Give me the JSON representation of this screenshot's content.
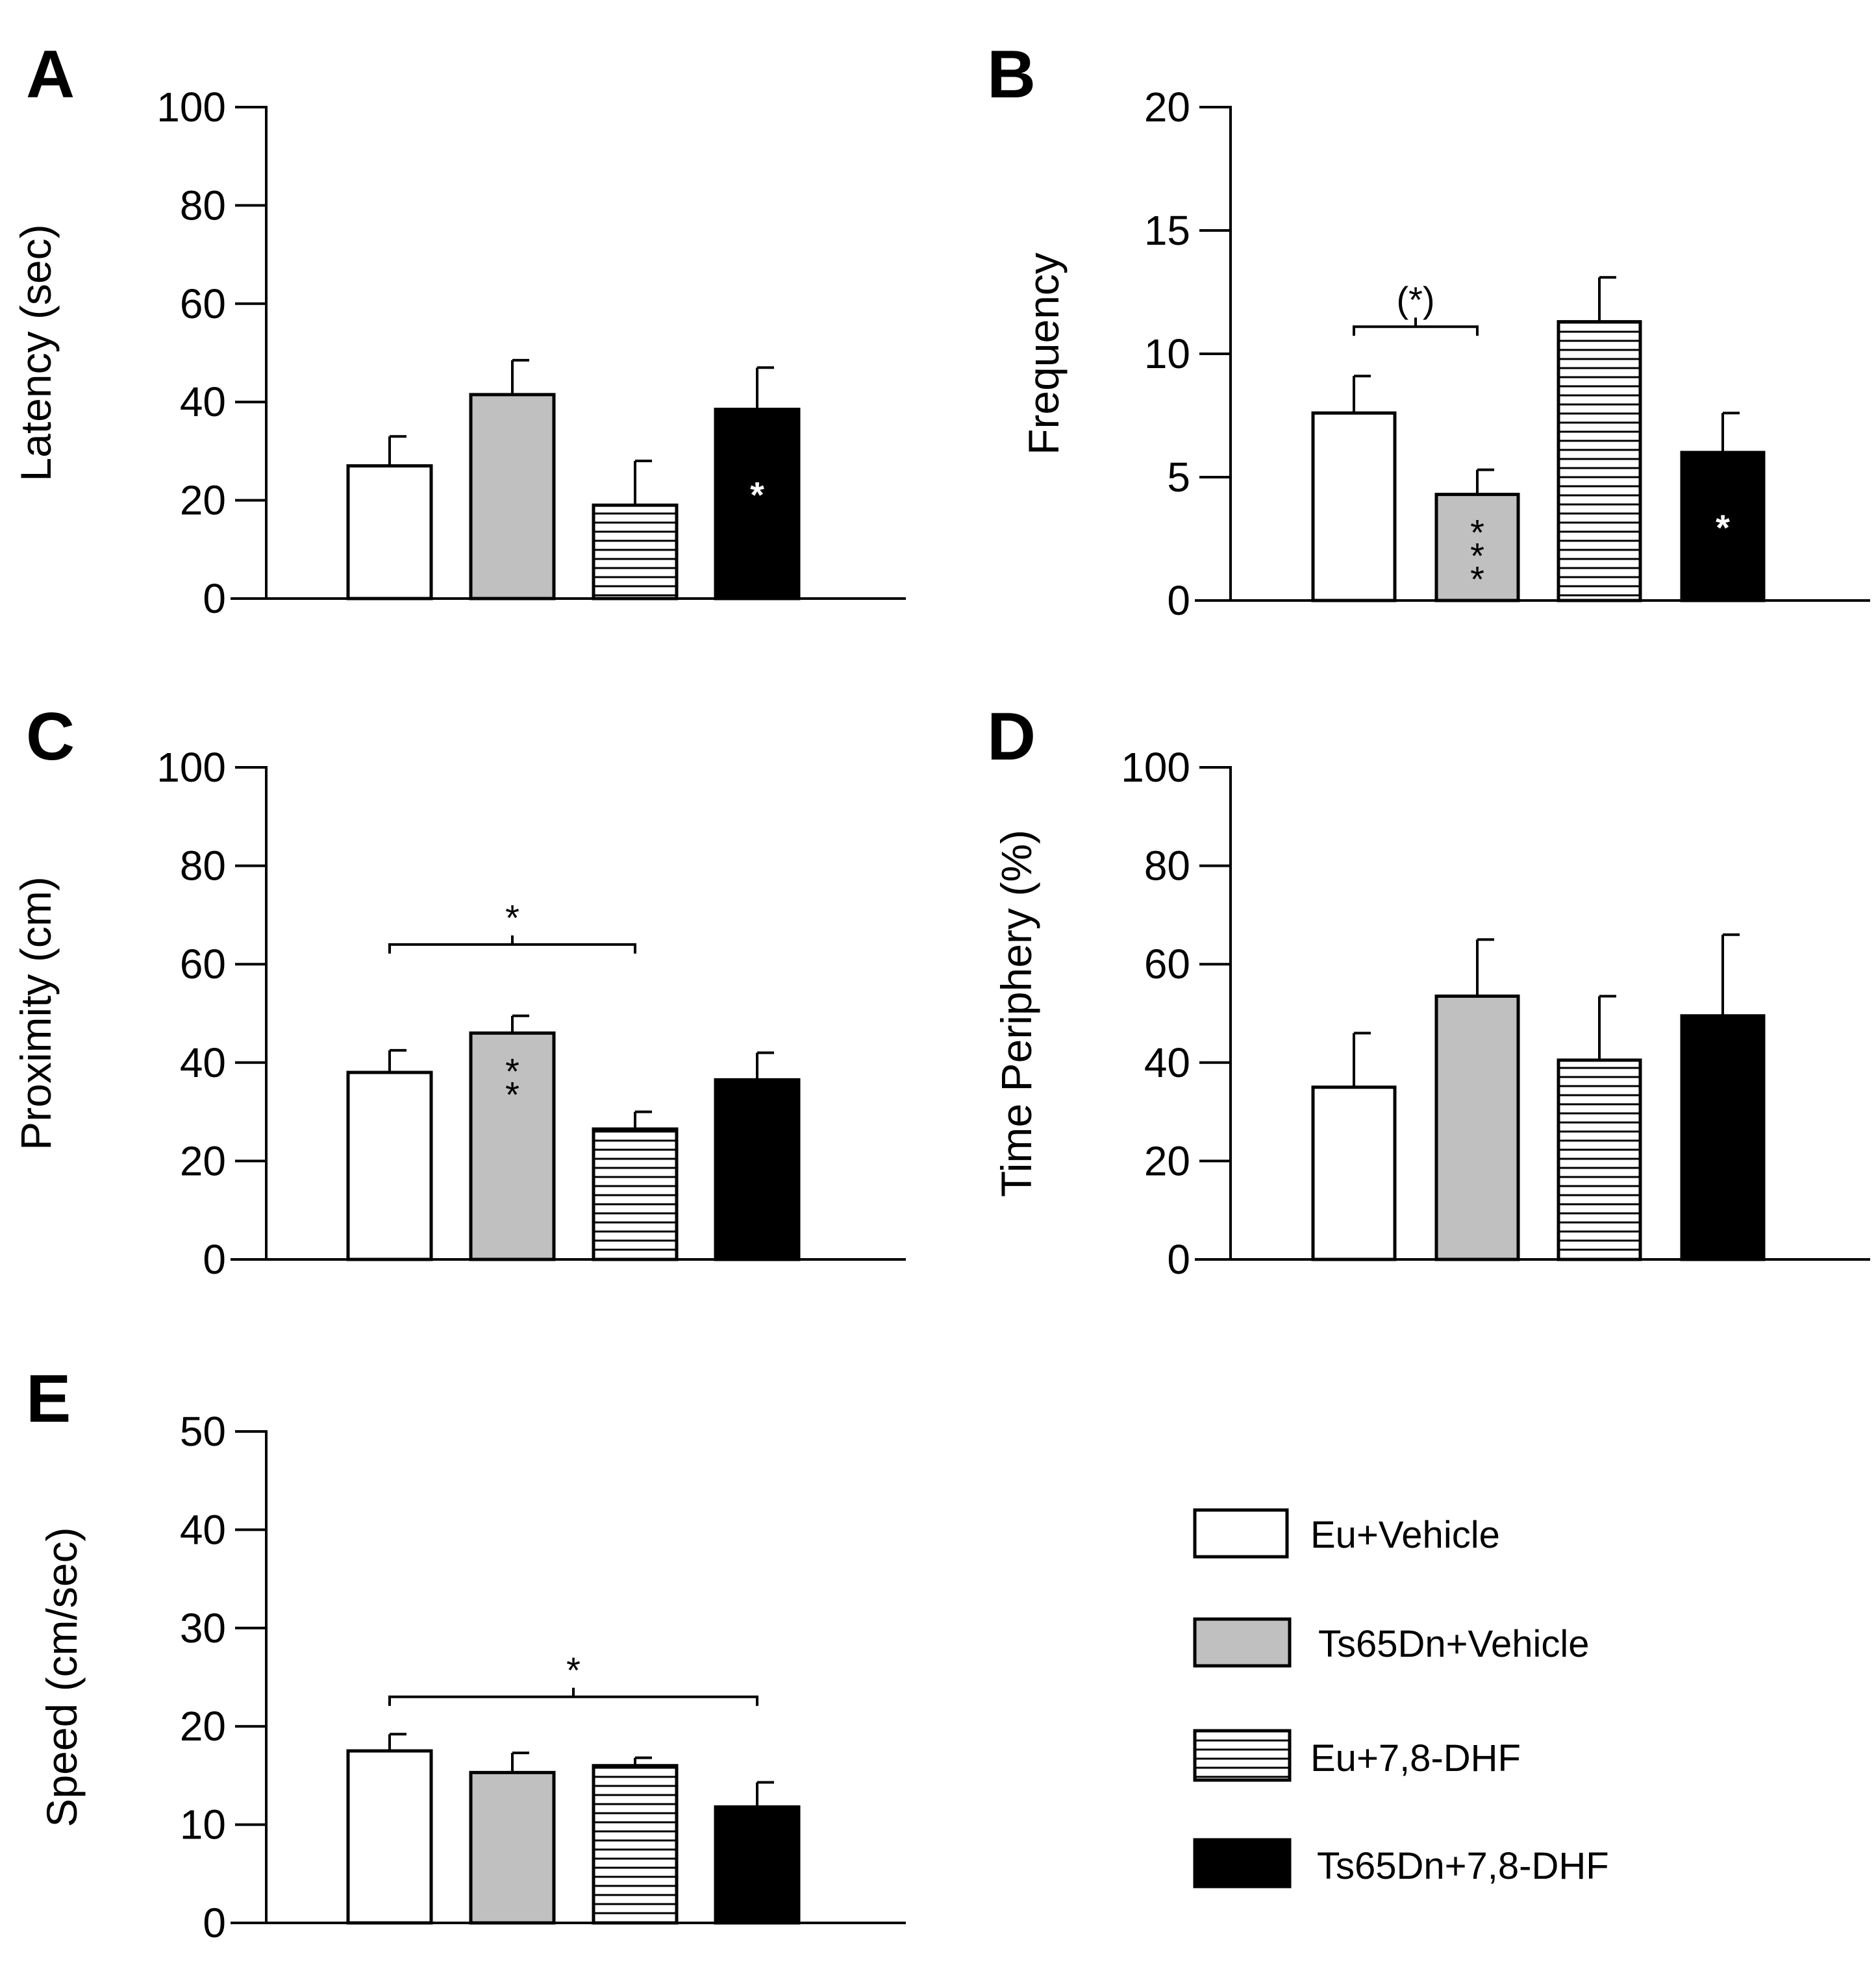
{
  "chart_data": [
    {
      "type": "bar",
      "panel": "A",
      "ylabel": "Latency (sec)",
      "ylim": [
        0,
        100
      ],
      "yticks": [
        0,
        20,
        40,
        60,
        80,
        100
      ],
      "categories": [
        "Eu+Vehicle",
        "Ts65Dn+Vehicle",
        "Eu+7,8-DHF",
        "Ts65Dn+7,8-DHF"
      ],
      "values": [
        27,
        41.5,
        19,
        38.5
      ],
      "errors": [
        6,
        7,
        9,
        8.5
      ],
      "bar_annotations": [
        "",
        "",
        "",
        "*"
      ],
      "brackets": []
    },
    {
      "type": "bar",
      "panel": "B",
      "ylabel": "Frequency",
      "ylim": [
        0,
        20
      ],
      "yticks": [
        0,
        5,
        10,
        15,
        20
      ],
      "categories": [
        "Eu+Vehicle",
        "Ts65Dn+Vehicle",
        "Eu+7,8-DHF",
        "Ts65Dn+7,8-DHF"
      ],
      "values": [
        7.6,
        4.3,
        11.3,
        6
      ],
      "errors": [
        1.5,
        1,
        1.8,
        1.6
      ],
      "bar_annotations": [
        "",
        "***",
        "",
        "*"
      ],
      "brackets": [
        {
          "from": 0,
          "to": 1,
          "label": "(*)",
          "y": 11.1
        }
      ]
    },
    {
      "type": "bar",
      "panel": "C",
      "ylabel": "Proximity (cm)",
      "ylim": [
        0,
        100
      ],
      "yticks": [
        0,
        20,
        40,
        60,
        80,
        100
      ],
      "categories": [
        "Eu+Vehicle",
        "Ts65Dn+Vehicle",
        "Eu+7,8-DHF",
        "Ts65Dn+7,8-DHF"
      ],
      "values": [
        38,
        46,
        26.5,
        36.5
      ],
      "errors": [
        4.5,
        3.5,
        3.5,
        5.5
      ],
      "bar_annotations": [
        "",
        "**",
        "",
        ""
      ],
      "brackets": [
        {
          "from": 0,
          "to": 2,
          "label": "*",
          "y": 64
        }
      ]
    },
    {
      "type": "bar",
      "panel": "D",
      "ylabel": "Time Periphery (%)",
      "ylim": [
        0,
        100
      ],
      "yticks": [
        0,
        20,
        40,
        60,
        80,
        100
      ],
      "categories": [
        "Eu+Vehicle",
        "Ts65Dn+Vehicle",
        "Eu+7,8-DHF",
        "Ts65Dn+7,8-DHF"
      ],
      "values": [
        35,
        53.5,
        40.5,
        49.5
      ],
      "errors": [
        11,
        11.5,
        13,
        16.5
      ],
      "bar_annotations": [
        "",
        "",
        "",
        ""
      ],
      "brackets": []
    },
    {
      "type": "bar",
      "panel": "E",
      "ylabel": "Speed (cm/sec)",
      "ylim": [
        0,
        50
      ],
      "yticks": [
        0,
        10,
        20,
        30,
        40,
        50
      ],
      "categories": [
        "Eu+Vehicle",
        "Ts65Dn+Vehicle",
        "Eu+7,8-DHF",
        "Ts65Dn+7,8-DHF"
      ],
      "values": [
        17.5,
        15.3,
        16,
        11.8
      ],
      "errors": [
        1.7,
        2,
        0.8,
        2.5
      ],
      "bar_annotations": [
        "",
        "",
        "",
        ""
      ],
      "brackets": [
        {
          "from": 0,
          "to": 3,
          "label": "*",
          "y": 23
        }
      ]
    }
  ],
  "legend": {
    "items": [
      {
        "label": "Eu+Vehicle",
        "fill": "white"
      },
      {
        "label": "Ts65Dn+Vehicle",
        "fill": "gray"
      },
      {
        "label": "Eu+7,8-DHF",
        "fill": "stripes"
      },
      {
        "label": "Ts65Dn+7,8-DHF",
        "fill": "black"
      }
    ]
  },
  "colors": {
    "white_bar": "#ffffff",
    "gray_bar": "#c0c0c0",
    "black_bar": "#000000",
    "stripe": "#000000",
    "axis": "#000000"
  }
}
